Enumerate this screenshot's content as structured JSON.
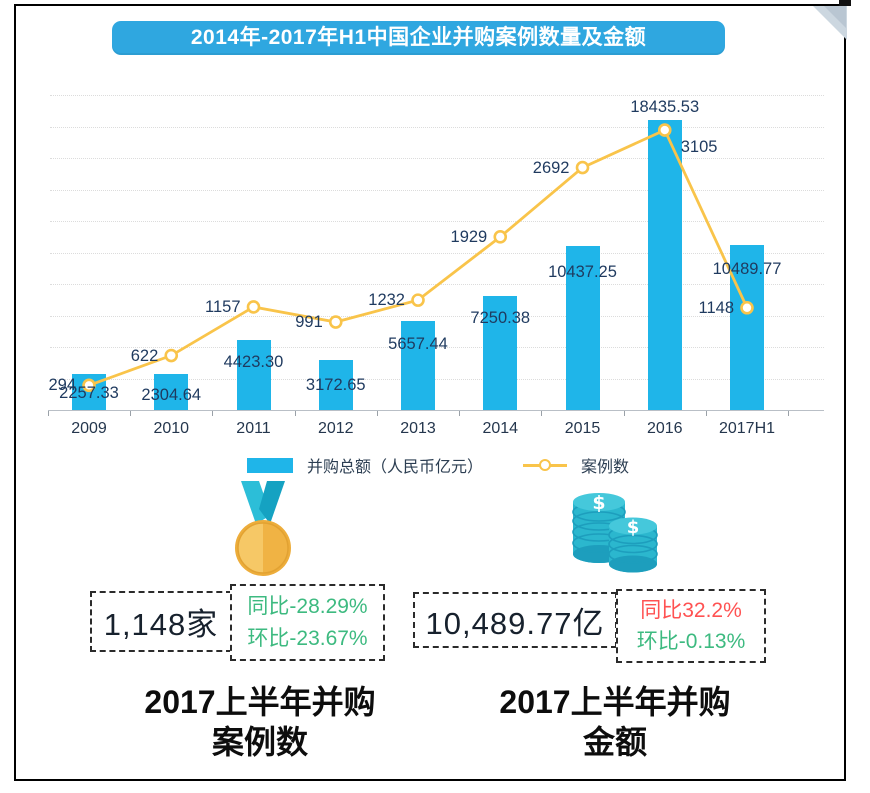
{
  "page": {
    "title": "2014年-2017年H1中国企业并购案例数量及金额"
  },
  "chart_data": {
    "type": "combo",
    "categories": [
      "2009",
      "2010",
      "2011",
      "2012",
      "2013",
      "2014",
      "2015",
      "2016",
      "2017H1"
    ],
    "series": [
      {
        "name": "并购总额（人民币亿元）",
        "type": "bar",
        "values": [
          2257.33,
          2304.64,
          4423.3,
          3172.65,
          5657.44,
          7250.38,
          10437.25,
          18435.53,
          10489.77
        ],
        "labels": [
          "2257.33",
          "2304.64",
          "4423.30",
          "3172.65",
          "5657.44",
          "7250.38",
          "10437.25",
          "18435.53",
          "10489.77"
        ]
      },
      {
        "name": "案例数",
        "type": "line",
        "values": [
          294,
          622,
          1157,
          991,
          1232,
          1929,
          2692,
          3105,
          1148
        ],
        "labels": [
          "294",
          "622",
          "1157",
          "991",
          "1232",
          "1929",
          "2692",
          "3105",
          "1148"
        ]
      }
    ],
    "xlabel": "",
    "ylabel": "",
    "bar_axis_max": 20000,
    "grid_step": 2000,
    "grid": true,
    "legend_position": "bottom",
    "colors": {
      "bar": "#1FB5E9",
      "line": "#F9C44A",
      "label": "#1F3A5F"
    },
    "layout": {
      "bar_label_dy": [
        10,
        12,
        13,
        16,
        14,
        13,
        17,
        -22,
        15
      ]
    }
  },
  "legend": {
    "bar_label": "并购总额（人民币亿元）",
    "line_label": "案例数"
  },
  "stats": {
    "left": {
      "icon": "medal-icon",
      "value": "1,148家",
      "yoy": "同比-28.29%",
      "mom": "环比-23.67%",
      "caption_line1": "2017上半年并购",
      "caption_line2": "案例数"
    },
    "right": {
      "icon": "coins-icon",
      "value": "10,489.77亿",
      "yoy": "同比32.2%",
      "mom": "环比-0.13%",
      "caption_line1": "2017上半年并购",
      "caption_line2": "金额"
    }
  },
  "colors": {
    "banner": "#2FA7E0",
    "bar": "#1FB5E9",
    "line": "#F9C44A",
    "green": "#3DBA80",
    "red": "#FF5252"
  }
}
